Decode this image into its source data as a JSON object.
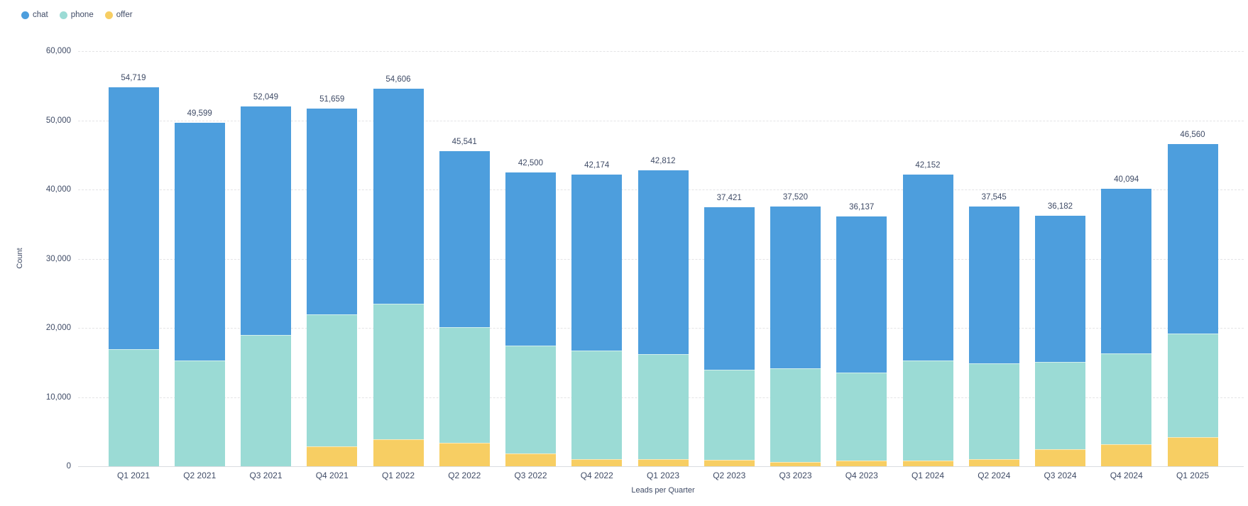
{
  "legend": {
    "items": [
      {
        "label": "chat",
        "color": "#4D9EDD"
      },
      {
        "label": "phone",
        "color": "#9BDBD5"
      },
      {
        "label": "offer",
        "color": "#F7CE63"
      }
    ]
  },
  "chart_data": {
    "type": "bar",
    "stacked": true,
    "title": "",
    "xlabel": "Leads per Quarter",
    "ylabel": "Count",
    "ylim": [
      0,
      60000
    ],
    "ytick_interval": 10000,
    "yticks": [
      "0",
      "10,000",
      "20,000",
      "30,000",
      "40,000",
      "50,000",
      "60,000"
    ],
    "grid": "horizontal-dashed",
    "legend_position": "top-left",
    "categories": [
      "Q1 2021",
      "Q2 2021",
      "Q3 2021",
      "Q4 2021",
      "Q1 2022",
      "Q2 2022",
      "Q3 2022",
      "Q4 2022",
      "Q1 2023",
      "Q2 2023",
      "Q3 2023",
      "Q4 2023",
      "Q1 2024",
      "Q2 2024",
      "Q3 2024",
      "Q4 2024",
      "Q1 2025"
    ],
    "series": [
      {
        "name": "chat",
        "color": "#4D9EDD",
        "values": [
          37819,
          34349,
          33049,
          29759,
          31106,
          25441,
          25100,
          25474,
          26612,
          23521,
          23320,
          22637,
          26902,
          22645,
          21132,
          23744,
          27410
        ]
      },
      {
        "name": "phone",
        "color": "#9BDBD5",
        "values": [
          16900,
          15250,
          19000,
          19050,
          19600,
          16700,
          15600,
          15700,
          15150,
          12950,
          13550,
          12700,
          14450,
          13900,
          12550,
          13150,
          14950
        ]
      },
      {
        "name": "offer",
        "color": "#F7CE63",
        "values": [
          0,
          0,
          0,
          2850,
          3900,
          3400,
          1800,
          1000,
          1050,
          950,
          650,
          800,
          800,
          1000,
          2500,
          3200,
          4200
        ]
      }
    ],
    "totals": [
      54719,
      49599,
      52049,
      51659,
      54606,
      45541,
      42500,
      42174,
      42812,
      37421,
      37520,
      36137,
      42152,
      37545,
      36182,
      40094,
      46560
    ],
    "totals_formatted": [
      "54,719",
      "49,599",
      "52,049",
      "51,659",
      "54,606",
      "45,541",
      "42,500",
      "42,174",
      "42,812",
      "37,421",
      "37,520",
      "36,137",
      "42,152",
      "37,545",
      "36,182",
      "40,094",
      "46,560"
    ],
    "colors": {
      "text": "#3F4B66",
      "gridline": "#E4E4E6",
      "axis_line": "#D9DCE1"
    }
  }
}
